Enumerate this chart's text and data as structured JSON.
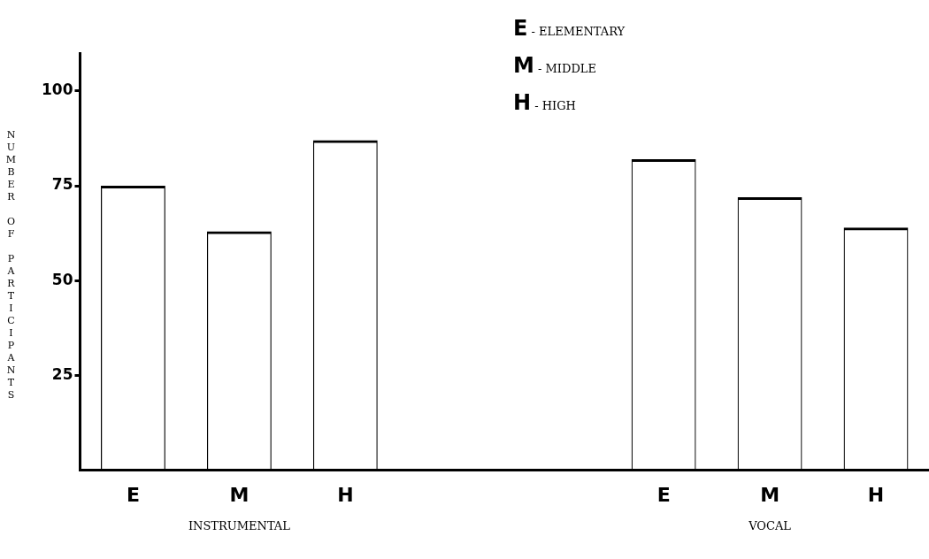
{
  "chart_data": {
    "type": "bar",
    "ylabel": "NUMBER OF PARTICIPANTS",
    "categories": [
      "E",
      "M",
      "H",
      null,
      null,
      "E",
      "M",
      "H"
    ],
    "values": [
      75,
      63,
      87,
      null,
      null,
      82,
      72,
      64
    ],
    "color": "#000000",
    "ylim": [
      0,
      110
    ],
    "yticks": [
      25,
      50,
      75,
      100
    ],
    "grid": false,
    "legend": false,
    "annotations": [
      "INSTRUMENTAL",
      "VOCAL",
      "E - ELEMENTARY",
      "M - MIDDLE",
      "H - HIGH"
    ]
  }
}
